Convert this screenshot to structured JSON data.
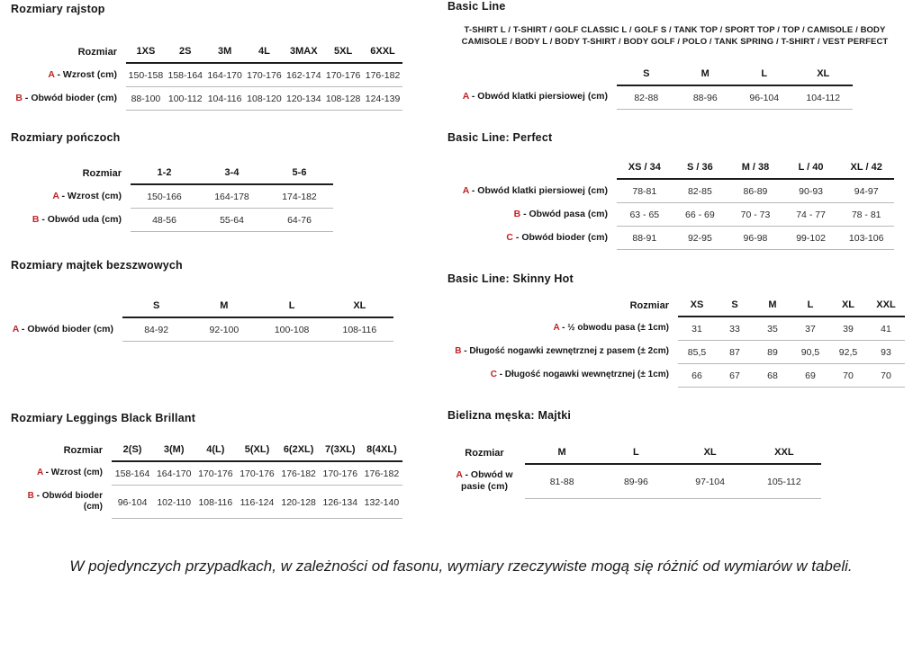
{
  "colors": {
    "accent_red": "#c02428",
    "rule_dark": "#1d1d1d",
    "rule_light": "#b8b8b8"
  },
  "footnote": "W pojedynczych przypadkach, w zależności od fasonu, wymiary rzeczywiste mogą się różnić od wymiarów w tabeli.",
  "left": [
    {
      "title": "Rozmiary rajstop",
      "table": {
        "size_header": "Rozmiar",
        "columns": [
          "1XS",
          "2S",
          "3M",
          "4L",
          "3MAX",
          "5XL",
          "6XXL"
        ],
        "rows": [
          {
            "letter": "A",
            "label": "Wzrost (cm)",
            "values": [
              "150-158",
              "158-164",
              "164-170",
              "170-176",
              "162-174",
              "170-176",
              "176-182"
            ]
          },
          {
            "letter": "B",
            "label": "Obwód bioder (cm)",
            "values": [
              "88-100",
              "100-112",
              "104-116",
              "108-120",
              "120-134",
              "108-128",
              "124-139"
            ]
          }
        ]
      }
    },
    {
      "title": "Rozmiary pończoch",
      "table": {
        "size_header": "Rozmiar",
        "columns": [
          "1-2",
          "3-4",
          "5-6"
        ],
        "rows": [
          {
            "letter": "A",
            "label": "Wzrost (cm)",
            "values": [
              "150-166",
              "164-178",
              "174-182"
            ]
          },
          {
            "letter": "B",
            "label": "Obwód uda (cm)",
            "values": [
              "48-56",
              "55-64",
              "64-76"
            ]
          }
        ]
      }
    },
    {
      "title": "Rozmiary majtek bezszwowych",
      "table": {
        "size_header": "",
        "columns": [
          "S",
          "M",
          "L",
          "XL"
        ],
        "rows": [
          {
            "letter": "A",
            "label": "Obwód bioder (cm)",
            "values": [
              "84-92",
              "92-100",
              "100-108",
              "108-116"
            ]
          }
        ]
      }
    },
    {
      "title": "Rozmiary Leggings Black Brillant",
      "table": {
        "size_header": "Rozmiar",
        "columns": [
          "2(S)",
          "3(M)",
          "4(L)",
          "5(XL)",
          "6(2XL)",
          "7(3XL)",
          "8(4XL)"
        ],
        "rows": [
          {
            "letter": "A",
            "label": "Wzrost (cm)",
            "values": [
              "158-164",
              "164-170",
              "170-176",
              "170-176",
              "176-182",
              "170-176",
              "176-182"
            ]
          },
          {
            "letter": "B",
            "label": "Obwód bioder (cm)",
            "values": [
              "96-104",
              "102-110",
              "108-116",
              "116-124",
              "120-128",
              "126-134",
              "132-140"
            ]
          }
        ]
      }
    }
  ],
  "right": [
    {
      "title": "Basic Line",
      "products": "T-SHIRT L / T-SHIRT / GOLF CLASSIC L / GOLF S / TANK TOP / SPORT TOP / TOP / CAMISOLE / BODY CAMISOLE / BODY L / BODY T-SHIRT / BODY GOLF / POLO / TANK SPRING / T-SHIRT / VEST PERFECT",
      "table": {
        "size_header": "",
        "columns": [
          "S",
          "M",
          "L",
          "XL"
        ],
        "rows": [
          {
            "letter": "A",
            "label": "Obwód klatki piersiowej (cm)",
            "values": [
              "82-88",
              "88-96",
              "96-104",
              "104-112"
            ]
          }
        ]
      }
    },
    {
      "title": "Basic Line: Perfect",
      "table": {
        "size_header": "",
        "columns": [
          "XS / 34",
          "S / 36",
          "M / 38",
          "L / 40",
          "XL / 42"
        ],
        "rows": [
          {
            "letter": "A",
            "label": "Obwód klatki piersiowej (cm)",
            "values": [
              "78-81",
              "82-85",
              "86-89",
              "90-93",
              "94-97"
            ]
          },
          {
            "letter": "B",
            "label": "Obwód pasa (cm)",
            "values": [
              "63 - 65",
              "66 - 69",
              "70 - 73",
              "74 - 77",
              "78 - 81"
            ]
          },
          {
            "letter": "C",
            "label": "Obwód bioder (cm)",
            "values": [
              "88-91",
              "92-95",
              "96-98",
              "99-102",
              "103-106"
            ]
          }
        ]
      }
    },
    {
      "title": "Basic Line: Skinny Hot",
      "table": {
        "size_header": "Rozmiar",
        "columns": [
          "XS",
          "S",
          "M",
          "L",
          "XL",
          "XXL"
        ],
        "rows": [
          {
            "letter": "A",
            "label": "½ obwodu pasa (± 1cm)",
            "values": [
              "31",
              "33",
              "35",
              "37",
              "39",
              "41"
            ]
          },
          {
            "letter": "B",
            "label": "Długość nogawki zewnętrznej z pasem (± 2cm)",
            "values": [
              "85,5",
              "87",
              "89",
              "90,5",
              "92,5",
              "93"
            ]
          },
          {
            "letter": "C",
            "label": "Długość nogawki wewnętrznej (± 1cm)",
            "values": [
              "66",
              "67",
              "68",
              "69",
              "70",
              "70"
            ]
          }
        ]
      }
    },
    {
      "title": "Bielizna męska: Majtki",
      "table": {
        "size_header": "Rozmiar",
        "columns": [
          "M",
          "L",
          "XL",
          "XXL"
        ],
        "rows": [
          {
            "letter": "A",
            "label": "Obwód w pasie (cm)",
            "values": [
              "81-88",
              "89-96",
              "97-104",
              "105-112"
            ]
          }
        ]
      }
    }
  ]
}
